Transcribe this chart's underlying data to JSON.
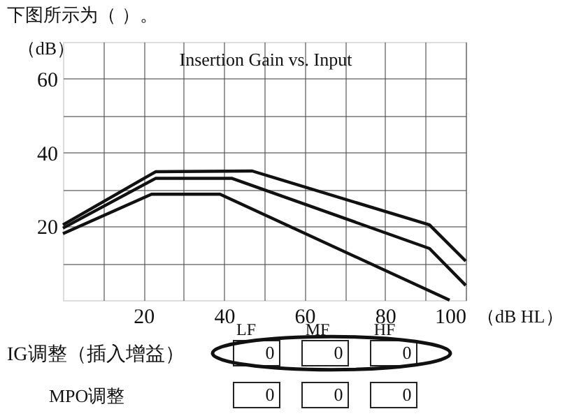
{
  "chart_data": {
    "type": "line",
    "title": "Insertion Gain vs. Input",
    "xlabel": "（dB HL）",
    "ylabel": "（dB）",
    "annotations": [
      "下图所示为（ ）。",
      "LF",
      "MF",
      "HF",
      "IG调整（插入增益）",
      "MPO调整",
      "0",
      "0",
      "0",
      "0",
      "0",
      "0"
    ],
    "series": [
      {
        "color": "#111111",
        "x": [
          0,
          23,
          47,
          91,
          100
        ],
        "values": [
          20.4,
          34.8,
          35,
          20.4,
          10.6
        ]
      },
      {
        "color": "#111111",
        "x": [
          0,
          23,
          42,
          91,
          100
        ],
        "values": [
          19.5,
          33,
          33,
          14,
          4
        ]
      },
      {
        "color": "#111111",
        "x": [
          0,
          22,
          39,
          96
        ],
        "values": [
          18,
          28.7,
          28.7,
          0
        ]
      }
    ],
    "xlim": [
      0,
      100
    ],
    "ylim": [
      0,
      70
    ],
    "xticks": [
      {
        "value": 10,
        "label": null
      },
      20,
      {
        "value": 30,
        "label": null
      },
      40,
      {
        "value": 50,
        "label": null
      },
      60,
      {
        "value": 70,
        "label": null
      },
      80,
      {
        "value": 90,
        "label": null
      },
      100
    ],
    "yticks": [
      {
        "value": 10,
        "label": null
      },
      20,
      {
        "value": 30,
        "label": null
      },
      40,
      {
        "value": 50,
        "label": null
      },
      60
    ],
    "grid": true,
    "legend": false,
    "marker": "none",
    "line_style": "solid"
  }
}
